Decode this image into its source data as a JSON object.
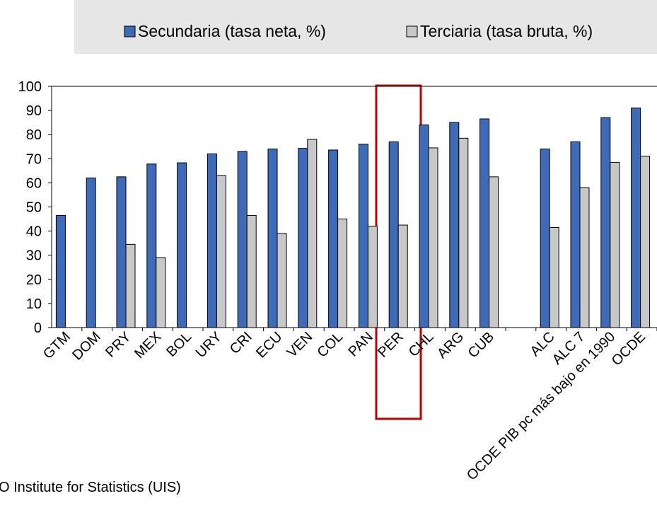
{
  "chart_data": {
    "type": "bar",
    "categories": [
      "GTM",
      "DOM",
      "PRY",
      "MEX",
      "BOL",
      "URY",
      "CRI",
      "ECU",
      "VEN",
      "COL",
      "PAN",
      "PER",
      "CHL",
      "ARG",
      "CUB",
      null,
      "ALC",
      "ALC 7",
      "OCDE PIB pc más bajo en 1990",
      "OCDE"
    ],
    "series": [
      {
        "name": "Secundaria (tasa neta, %)",
        "color": "#3d6bb8",
        "values": [
          46.5,
          62,
          62.5,
          67.8,
          68.3,
          72,
          73,
          74,
          74.3,
          73.6,
          76,
          77,
          84,
          85,
          86.5,
          null,
          74,
          77,
          87,
          91
        ]
      },
      {
        "name": "Terciaria (tasa bruta, %)",
        "color": "#c8c8c8",
        "values": [
          null,
          null,
          34.5,
          29,
          null,
          63,
          46.5,
          39,
          78,
          45,
          42,
          42.5,
          74.5,
          78.5,
          62.5,
          null,
          41.5,
          58,
          68.5,
          71
        ]
      }
    ],
    "ylim": [
      0,
      100
    ],
    "yticks": [
      0,
      10,
      20,
      30,
      40,
      50,
      60,
      70,
      80,
      90,
      100
    ],
    "legend": "top",
    "source": "O Institute for Statistics (UIS)"
  }
}
